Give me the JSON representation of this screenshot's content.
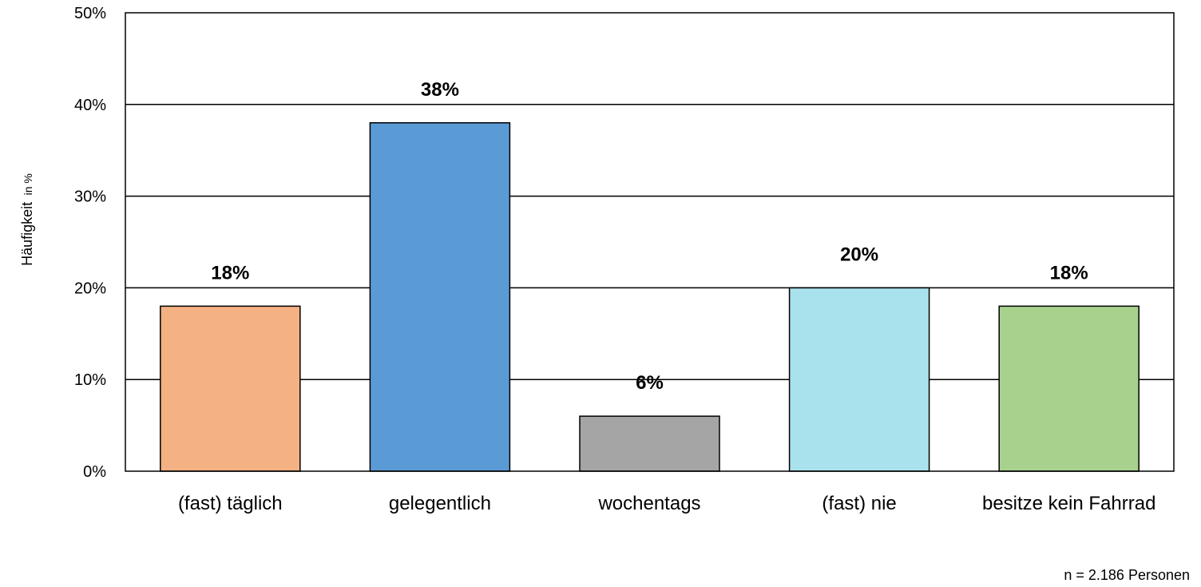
{
  "chart_data": {
    "type": "bar",
    "categories": [
      "(fast) täglich",
      "gelegentlich",
      "wochentags",
      "(fast) nie",
      "besitze kein Fahrrad"
    ],
    "values": [
      18,
      38,
      6,
      20,
      18
    ],
    "data_labels": [
      "18%",
      "38%",
      "6%",
      "20%",
      "18%"
    ],
    "colors": [
      "#F4B183",
      "#5B9BD5",
      "#A5A5A5",
      "#A9E2EC",
      "#A9D18E"
    ],
    "ylabel_main": "Häufigkeit",
    "ylabel_unit": "in %",
    "ylim": [
      0,
      50
    ],
    "yticks": [
      0,
      10,
      20,
      30,
      40,
      50
    ],
    "ytick_labels": [
      "0%",
      "10%",
      "20%",
      "30%",
      "40%",
      "50%"
    ],
    "grid": true,
    "legend": "none"
  },
  "footnote": "n = 2.186 Personen"
}
